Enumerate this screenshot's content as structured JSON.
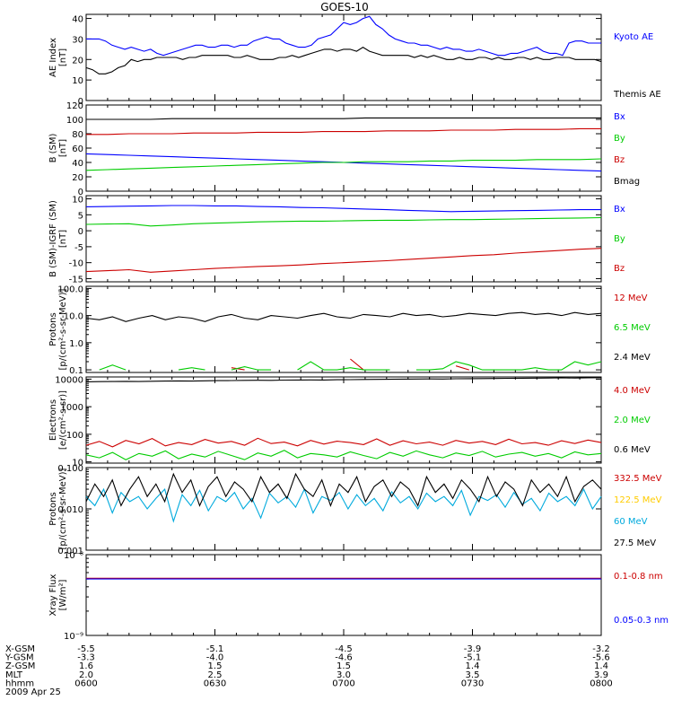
{
  "title": "GOES-10",
  "x_ticks": [
    "0600",
    "0630",
    "0700",
    "0730",
    "0800"
  ],
  "ephemeris": {
    "rows": [
      {
        "label": "X-GSM",
        "values": [
          "-5.5",
          "-5.1",
          "-4.5",
          "-3.9",
          "-3.2"
        ]
      },
      {
        "label": "Y-GSM",
        "values": [
          "-3.3",
          "-4.0",
          "-4.6",
          "-5.1",
          "-5.6"
        ]
      },
      {
        "label": "Z-GSM",
        "values": [
          "1.6",
          "1.5",
          "1.5",
          "1.4",
          "1.4"
        ]
      },
      {
        "label": "MLT",
        "values": [
          "2.0",
          "2.5",
          "3.0",
          "3.5",
          "3.9"
        ]
      },
      {
        "label": "hhmm",
        "values": [
          "0600",
          "0630",
          "0700",
          "0730",
          "0800"
        ]
      }
    ],
    "date": "2009 Apr 25"
  },
  "colors": {
    "black": "#000000",
    "blue": "#0000ff",
    "red": "#cc0000",
    "green": "#00cc00",
    "cyan": "#00aadd",
    "yellow": "#ffcc00"
  },
  "chart_data": [
    {
      "type": "line",
      "ylabel": [
        "AE Index",
        "[nT]"
      ],
      "yscale": "linear",
      "ylim": [
        0,
        42
      ],
      "yticks": [
        0,
        10,
        20,
        30,
        40
      ],
      "x_range": [
        "0600",
        "0800"
      ],
      "series": [
        {
          "name": "Kyoto AE",
          "color": "blue",
          "y": [
            30,
            30,
            30,
            29,
            27,
            26,
            25,
            26,
            25,
            24,
            25,
            23,
            22,
            23,
            24,
            25,
            26,
            27,
            27,
            26,
            26,
            27,
            27,
            26,
            27,
            27,
            29,
            30,
            31,
            30,
            30,
            28,
            27,
            26,
            26,
            27,
            30,
            31,
            32,
            35,
            38,
            37,
            38,
            40,
            41,
            37,
            35,
            32,
            30,
            29,
            28,
            28,
            27,
            27,
            26,
            25,
            26,
            25,
            25,
            24,
            24,
            25,
            24,
            23,
            22,
            22,
            23,
            23,
            24,
            25,
            26,
            24,
            23,
            23,
            22,
            28,
            29,
            29,
            28,
            28,
            28
          ]
        },
        {
          "name": "Themis AE",
          "color": "black",
          "y": [
            16,
            15,
            13,
            13,
            14,
            16,
            17,
            20,
            19,
            20,
            20,
            21,
            21,
            21,
            21,
            20,
            21,
            21,
            22,
            22,
            22,
            22,
            22,
            21,
            21,
            22,
            21,
            20,
            20,
            20,
            21,
            21,
            22,
            21,
            22,
            23,
            24,
            25,
            25,
            24,
            25,
            25,
            24,
            26,
            24,
            23,
            22,
            22,
            22,
            22,
            22,
            21,
            22,
            21,
            22,
            21,
            20,
            20,
            21,
            20,
            20,
            21,
            21,
            20,
            21,
            20,
            20,
            21,
            21,
            20,
            21,
            20,
            20,
            21,
            21,
            21,
            20,
            20,
            20,
            20,
            19
          ]
        }
      ]
    },
    {
      "type": "line",
      "ylabel": [
        "B (SM)",
        "[nT]"
      ],
      "yscale": "linear",
      "ylim": [
        0,
        120
      ],
      "yticks": [
        0,
        20,
        40,
        60,
        80,
        100,
        120
      ],
      "series": [
        {
          "name": "Bx",
          "color": "blue",
          "y": [
            52,
            51,
            50,
            49,
            48,
            47,
            46,
            45,
            44,
            43,
            42,
            41,
            40,
            39,
            38,
            37,
            36,
            35,
            34,
            33,
            32,
            31,
            30,
            29,
            28
          ]
        },
        {
          "name": "By",
          "color": "green",
          "y": [
            29,
            30,
            31,
            32,
            33,
            34,
            35,
            36,
            37,
            38,
            39,
            40,
            40,
            41,
            41,
            41,
            42,
            42,
            43,
            43,
            43,
            44,
            44,
            44,
            45
          ]
        },
        {
          "name": "Bz",
          "color": "red",
          "y": [
            79,
            79,
            80,
            80,
            80,
            81,
            81,
            81,
            82,
            82,
            82,
            83,
            83,
            83,
            84,
            84,
            84,
            85,
            85,
            85,
            86,
            86,
            86,
            87,
            87
          ]
        },
        {
          "name": "Bmag",
          "color": "black",
          "y": [
            100,
            100,
            100,
            100,
            101,
            101,
            101,
            101,
            101,
            101,
            101,
            101,
            101,
            102,
            102,
            102,
            102,
            102,
            102,
            102,
            102,
            102,
            102,
            102,
            102
          ]
        }
      ]
    },
    {
      "type": "line",
      "ylabel": [
        "B (SM)-IGRF (SM)",
        "[nT]"
      ],
      "yscale": "linear",
      "ylim": [
        -16,
        11
      ],
      "yticks": [
        -15,
        -10,
        -5,
        0,
        5,
        10
      ],
      "series": [
        {
          "name": "Bx",
          "color": "blue",
          "y": [
            7.5,
            7.6,
            7.7,
            7.8,
            7.9,
            7.9,
            7.8,
            7.8,
            7.6,
            7.5,
            7.3,
            7.2,
            7.0,
            6.8,
            6.6,
            6.4,
            6.2,
            6.0,
            6.1,
            6.2,
            6.3,
            6.4,
            6.5,
            6.6,
            6.6
          ]
        },
        {
          "name": "By",
          "color": "green",
          "y": [
            2.0,
            2.1,
            2.2,
            1.5,
            1.8,
            2.2,
            2.4,
            2.6,
            2.8,
            2.9,
            3.0,
            3.0,
            3.1,
            3.2,
            3.3,
            3.3,
            3.4,
            3.5,
            3.5,
            3.6,
            3.7,
            3.8,
            3.9,
            4.0,
            4.1
          ]
        },
        {
          "name": "Bz",
          "color": "red",
          "y": [
            -12.8,
            -12.5,
            -12.2,
            -13,
            -12.6,
            -12.2,
            -11.8,
            -11.5,
            -11.2,
            -11,
            -10.7,
            -10.3,
            -10,
            -9.7,
            -9.4,
            -9.0,
            -8.6,
            -8.2,
            -7.8,
            -7.5,
            -7.0,
            -6.6,
            -6.2,
            -5.8,
            -5.5
          ]
        }
      ]
    },
    {
      "type": "line",
      "ylabel": [
        "Protons",
        "[p/(cm²-s-sr-MeV)]"
      ],
      "yscale": "log",
      "ylim": [
        0.08,
        120
      ],
      "yticklabels": [
        "0.1",
        "1.0",
        "10.0",
        "100.0"
      ],
      "yticks": [
        0.1,
        1,
        10,
        100
      ],
      "series": [
        {
          "name": "12 MeV",
          "color": "red",
          "y": [
            null,
            null,
            null,
            null,
            null,
            null,
            null,
            null,
            null,
            null,
            null,
            0.12,
            0.1,
            null,
            null,
            null,
            null,
            null,
            null,
            null,
            0.25,
            0.1,
            null,
            null,
            null,
            null,
            null,
            null,
            0.14,
            0.1,
            null,
            null,
            null,
            null,
            null,
            null,
            null,
            null,
            null,
            null
          ]
        },
        {
          "name": "6.5 MeV",
          "color": "green",
          "y": [
            null,
            0.1,
            0.15,
            0.1,
            null,
            0.25,
            null,
            0.1,
            0.12,
            0.1,
            null,
            0.1,
            0.13,
            0.1,
            0.1,
            null,
            0.1,
            0.2,
            0.1,
            0.1,
            0.12,
            0.1,
            0.1,
            0.1,
            null,
            0.1,
            0.1,
            0.11,
            0.2,
            0.15,
            0.1,
            0.1,
            0.1,
            0.1,
            0.12,
            0.1,
            0.1,
            0.2,
            0.15,
            0.2
          ]
        },
        {
          "name": "2.4 MeV",
          "color": "black",
          "y": [
            8,
            7,
            9,
            6,
            8,
            10,
            7,
            9,
            8,
            6,
            9,
            11,
            8,
            7,
            10,
            9,
            8,
            10,
            12,
            9,
            8,
            11,
            10,
            9,
            12,
            10,
            11,
            9,
            10,
            12,
            11,
            10,
            12,
            13,
            11,
            12,
            10,
            13,
            11,
            12
          ]
        }
      ]
    },
    {
      "type": "line",
      "ylabel": [
        "Electrons",
        "[e/(cm²-s-sr)]"
      ],
      "yscale": "log",
      "ylim": [
        9,
        12000
      ],
      "yticklabels": [
        "10",
        "100",
        "1000",
        "10000"
      ],
      "yticks": [
        10,
        100,
        1000,
        10000
      ],
      "series": [
        {
          "name": "4.0 MeV",
          "color": "red",
          "y": [
            40,
            55,
            35,
            60,
            45,
            70,
            38,
            50,
            42,
            65,
            48,
            55,
            40,
            72,
            46,
            52,
            38,
            60,
            44,
            56,
            50,
            42,
            68,
            40,
            58,
            45,
            52,
            40,
            60,
            48,
            55,
            42,
            66,
            45,
            50,
            40,
            58,
            46,
            62,
            50
          ]
        },
        {
          "name": "2.0 MeV",
          "color": "green",
          "y": [
            18,
            14,
            22,
            12,
            20,
            16,
            25,
            13,
            19,
            15,
            24,
            17,
            12,
            21,
            16,
            26,
            14,
            20,
            18,
            15,
            23,
            17,
            13,
            22,
            16,
            25,
            18,
            14,
            21,
            17,
            24,
            15,
            19,
            22,
            16,
            20,
            14,
            23,
            18,
            20
          ]
        },
        {
          "name": "0.6 MeV",
          "color": "black",
          "y": [
            8000,
            8100,
            8200,
            8300,
            8200,
            8400,
            8500,
            8600,
            8500,
            8700,
            8800,
            8900,
            9000,
            9100,
            9000,
            9200,
            9300,
            9400,
            9300,
            9500,
            9600,
            9700,
            9800,
            9900,
            10000,
            10100,
            10200,
            10100,
            10300,
            10400,
            10500,
            10600,
            10700,
            10800,
            10900,
            11000,
            11100,
            11000,
            11200,
            11300
          ]
        }
      ]
    },
    {
      "type": "line",
      "ylabel": [
        "Protons",
        "[p/(cm²-s-sr-MeV)]"
      ],
      "yscale": "log",
      "ylim": [
        0.001,
        0.1
      ],
      "yticklabels": [
        "0.001",
        "0.010",
        "0.100"
      ],
      "yticks": [
        0.001,
        0.01,
        0.1
      ],
      "series": [
        {
          "name": "332.5 MeV",
          "color": "red",
          "y": []
        },
        {
          "name": "122.5 MeV",
          "color": "yellow",
          "y": []
        },
        {
          "name": "60 MeV",
          "color": "cyan",
          "y": [
            0.02,
            0.012,
            0.03,
            0.008,
            0.025,
            0.015,
            0.02,
            0.01,
            0.018,
            0.03,
            0.005,
            0.022,
            0.012,
            0.028,
            0.009,
            0.02,
            0.015,
            0.025,
            0.01,
            0.018,
            0.006,
            0.024,
            0.014,
            0.02,
            0.011,
            0.03,
            0.008,
            0.02,
            0.016,
            0.025,
            0.01,
            0.022,
            0.012,
            0.018,
            0.009,
            0.026,
            0.014,
            0.02,
            0.01,
            0.024,
            0.015,
            0.02,
            0.012,
            0.028,
            0.007,
            0.02,
            0.016,
            0.022,
            0.011,
            0.025,
            0.013,
            0.018,
            0.009,
            0.024,
            0.015,
            0.02,
            0.012,
            0.03,
            0.01,
            0.02
          ]
        },
        {
          "name": "27.5 MeV",
          "color": "black",
          "y": [
            0.015,
            0.04,
            0.02,
            0.05,
            0.012,
            0.03,
            0.06,
            0.02,
            0.04,
            0.015,
            0.07,
            0.025,
            0.05,
            0.012,
            0.035,
            0.06,
            0.02,
            0.045,
            0.03,
            0.015,
            0.06,
            0.025,
            0.04,
            0.018,
            0.07,
            0.03,
            0.02,
            0.05,
            0.012,
            0.04,
            0.025,
            0.06,
            0.015,
            0.035,
            0.05,
            0.02,
            0.045,
            0.03,
            0.012,
            0.06,
            0.025,
            0.04,
            0.018,
            0.05,
            0.03,
            0.015,
            0.06,
            0.02,
            0.045,
            0.03,
            0.012,
            0.05,
            0.025,
            0.04,
            0.02,
            0.06,
            0.015,
            0.035,
            0.05,
            0.03
          ]
        }
      ]
    },
    {
      "type": "line",
      "ylabel": [
        "Xray  Flux",
        "[W/m²]"
      ],
      "yscale": "log",
      "ylim": [
        1e-09,
        1e-08
      ],
      "yticklabels": [
        "10⁻⁹",
        "10⁻⁸"
      ],
      "yticks": [
        1e-09,
        1e-08
      ],
      "series": [
        {
          "name": "0.1-0.8 nm",
          "color": "red",
          "y": [
            5.1e-09,
            5.1e-09,
            5.1e-09,
            5.1e-09,
            5.1e-09,
            5.1e-09,
            5.1e-09,
            5.1e-09,
            5.1e-09,
            5.1e-09,
            5.1e-09,
            5.1e-09,
            5.1e-09,
            5.1e-09,
            5.1e-09,
            5.1e-09,
            5.1e-09,
            5.1e-09,
            5.1e-09,
            5.1e-09
          ]
        },
        {
          "name": "0.05-0.3 nm",
          "color": "blue",
          "y": [
            5e-09,
            5e-09,
            5e-09,
            5e-09,
            5e-09,
            5e-09,
            5e-09,
            5e-09,
            5e-09,
            5e-09,
            5e-09,
            5e-09,
            5e-09,
            5e-09,
            5e-09,
            5e-09,
            5e-09,
            5e-09,
            5e-09,
            5e-09
          ]
        }
      ]
    }
  ]
}
